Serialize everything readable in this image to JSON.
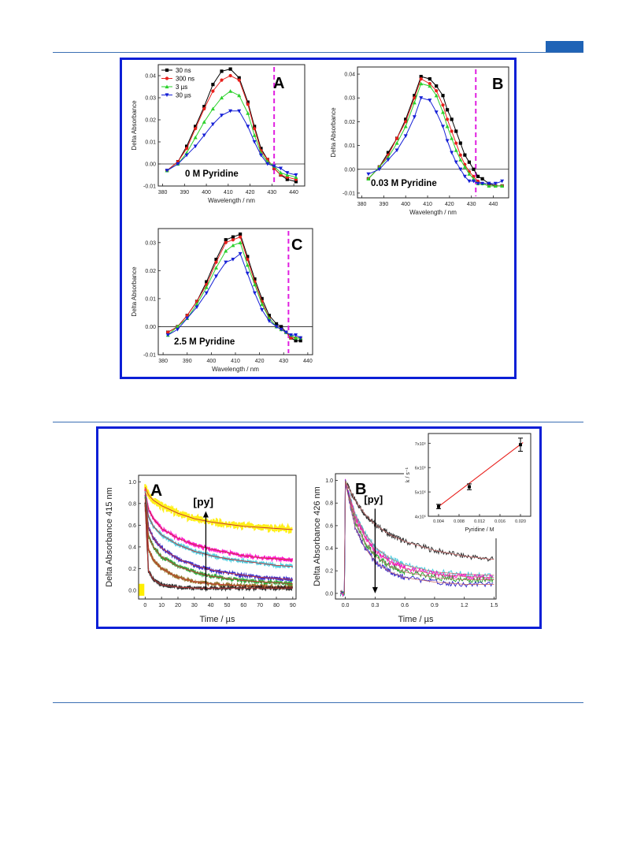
{
  "page": {
    "accent": "#1f63b6",
    "frame_color": "#0b1fd6"
  },
  "figure1": {
    "panels": [
      {
        "letter": "A",
        "annotation": "0 M Pyridine"
      },
      {
        "letter": "B",
        "annotation": "0.03 M Pyridine"
      },
      {
        "letter": "C",
        "annotation": "2.5 M Pyridine"
      }
    ],
    "legend": [
      "30 ns",
      "300 ns",
      "3 µs",
      "30 µs"
    ]
  },
  "figure2": {
    "panel_a": {
      "letter": "A",
      "annotation": "[py]"
    },
    "panel_b": {
      "letter": "B",
      "annotation": "[py]"
    }
  },
  "chart_data": [
    {
      "type": "line",
      "panel": "A",
      "annotation": "0 M Pyridine",
      "xlabel": "Wavelength / nm",
      "ylabel": "Delta Absorbance",
      "xlim": [
        378,
        445
      ],
      "ylim": [
        -0.01,
        0.045
      ],
      "xticks": [
        380,
        390,
        400,
        410,
        420,
        430,
        440
      ],
      "yticks": [
        -0.01,
        0.0,
        0.01,
        0.02,
        0.03,
        0.04
      ],
      "ytick_labels": [
        "-0.01",
        "0.00",
        "0.01",
        "0.02",
        "0.03",
        "0.04"
      ],
      "dashed_line_x": 431,
      "legend_position": "top-left",
      "x": [
        382,
        387,
        391,
        395,
        399,
        403,
        407,
        411,
        415,
        419,
        422,
        425,
        428,
        431,
        434,
        437,
        441
      ],
      "series": [
        {
          "name": "30 ns",
          "color": "#000000",
          "marker": "square",
          "values": [
            -0.003,
            0.001,
            0.008,
            0.017,
            0.026,
            0.036,
            0.042,
            0.043,
            0.039,
            0.028,
            0.017,
            0.007,
            0.002,
            -0.002,
            -0.005,
            -0.007,
            -0.008
          ]
        },
        {
          "name": "300 ns",
          "color": "#e8201c",
          "marker": "circle",
          "values": [
            -0.003,
            0.001,
            0.007,
            0.016,
            0.025,
            0.033,
            0.038,
            0.04,
            0.038,
            0.027,
            0.016,
            0.006,
            0.002,
            -0.002,
            -0.005,
            -0.006,
            -0.007
          ]
        },
        {
          "name": "3 µs",
          "color": "#2bd12b",
          "marker": "triangle-up",
          "values": [
            -0.003,
            0.0,
            0.005,
            0.012,
            0.019,
            0.025,
            0.03,
            0.033,
            0.031,
            0.023,
            0.013,
            0.005,
            0.001,
            -0.001,
            -0.004,
            -0.005,
            -0.006
          ]
        },
        {
          "name": "30 µs",
          "color": "#1620d6",
          "marker": "triangle-down",
          "values": [
            -0.003,
            0.0,
            0.004,
            0.008,
            0.013,
            0.018,
            0.022,
            0.024,
            0.024,
            0.017,
            0.01,
            0.004,
            0.0,
            -0.001,
            -0.002,
            -0.004,
            -0.005
          ]
        }
      ]
    },
    {
      "type": "line",
      "panel": "B",
      "annotation": "0.03 M Pyridine",
      "xlabel": "Wavelength / nm",
      "ylabel": "Delta Absorbance",
      "xlim": [
        378,
        447
      ],
      "ylim": [
        -0.012,
        0.043
      ],
      "xticks": [
        380,
        390,
        400,
        410,
        420,
        430,
        440
      ],
      "yticks": [
        -0.01,
        0.0,
        0.01,
        0.02,
        0.03,
        0.04
      ],
      "ytick_labels": [
        "-0.01",
        "0.00",
        "0.01",
        "0.02",
        "0.03",
        "0.04"
      ],
      "dashed_line_x": 432,
      "x": [
        383,
        388,
        392,
        396,
        400,
        404,
        407,
        411,
        414,
        417,
        419,
        421,
        423,
        425,
        427,
        429,
        431,
        433,
        435,
        438,
        441,
        444
      ],
      "series": [
        {
          "name": "30 ns",
          "color": "#000000",
          "marker": "square",
          "values": [
            -0.004,
            0.001,
            0.007,
            0.013,
            0.021,
            0.031,
            0.039,
            0.038,
            0.035,
            0.031,
            0.025,
            0.021,
            0.016,
            0.011,
            0.006,
            0.003,
            0.0,
            -0.003,
            -0.004,
            -0.006,
            -0.007,
            -0.007
          ]
        },
        {
          "name": "300 ns",
          "color": "#e8201c",
          "marker": "circle",
          "values": [
            -0.004,
            0.001,
            0.006,
            0.013,
            0.02,
            0.03,
            0.038,
            0.036,
            0.033,
            0.027,
            0.021,
            0.016,
            0.011,
            0.006,
            0.002,
            -0.001,
            -0.003,
            -0.005,
            -0.006,
            -0.007,
            -0.007,
            -0.007
          ]
        },
        {
          "name": "3 µs",
          "color": "#2bd12b",
          "marker": "triangle-up",
          "values": [
            -0.004,
            0.001,
            0.005,
            0.011,
            0.018,
            0.028,
            0.036,
            0.035,
            0.031,
            0.024,
            0.018,
            0.013,
            0.008,
            0.004,
            0.001,
            -0.002,
            -0.004,
            -0.006,
            -0.006,
            -0.007,
            -0.007,
            -0.007
          ]
        },
        {
          "name": "30 µs",
          "color": "#1620d6",
          "marker": "triangle-down",
          "values": [
            -0.002,
            0.0,
            0.004,
            0.008,
            0.014,
            0.022,
            0.03,
            0.029,
            0.024,
            0.018,
            0.012,
            0.007,
            0.003,
            0.0,
            -0.003,
            -0.005,
            -0.005,
            -0.006,
            -0.006,
            -0.006,
            -0.006,
            -0.005
          ]
        }
      ]
    },
    {
      "type": "line",
      "panel": "C",
      "annotation": "2.5 M Pyridine",
      "xlabel": "Wavelength / nm",
      "ylabel": "Delta Absorbance",
      "xlim": [
        378,
        442
      ],
      "ylim": [
        -0.01,
        0.035
      ],
      "xticks": [
        380,
        390,
        400,
        410,
        420,
        430,
        440
      ],
      "yticks": [
        -0.01,
        0.0,
        0.01,
        0.02,
        0.03
      ],
      "ytick_labels": [
        "-0.01",
        "0.00",
        "0.01",
        "0.02",
        "0.03"
      ],
      "dashed_line_x": 432,
      "x": [
        382,
        386,
        390,
        394,
        398,
        402,
        406,
        409,
        412,
        415,
        418,
        421,
        424,
        427,
        429,
        431,
        433,
        435,
        437
      ],
      "series": [
        {
          "name": "30 ns",
          "color": "#000000",
          "marker": "square",
          "values": [
            -0.002,
            0.0,
            0.004,
            0.009,
            0.016,
            0.024,
            0.031,
            0.032,
            0.033,
            0.025,
            0.017,
            0.01,
            0.004,
            0.001,
            0.0,
            -0.002,
            -0.004,
            -0.005,
            -0.005
          ]
        },
        {
          "name": "300 ns",
          "color": "#e8201c",
          "marker": "circle",
          "values": [
            -0.002,
            0.0,
            0.004,
            0.009,
            0.015,
            0.023,
            0.03,
            0.031,
            0.032,
            0.024,
            0.016,
            0.009,
            0.003,
            0.0,
            -0.001,
            -0.002,
            -0.004,
            -0.004,
            -0.004
          ]
        },
        {
          "name": "3 µs",
          "color": "#2bd12b",
          "marker": "triangle-up",
          "values": [
            -0.003,
            0.0,
            0.003,
            0.008,
            0.014,
            0.021,
            0.027,
            0.029,
            0.03,
            0.022,
            0.015,
            0.008,
            0.003,
            0.0,
            -0.001,
            -0.002,
            -0.003,
            -0.004,
            -0.004
          ]
        },
        {
          "name": "30 µs",
          "color": "#1620d6",
          "marker": "triangle-down",
          "values": [
            -0.003,
            -0.001,
            0.003,
            0.007,
            0.012,
            0.018,
            0.023,
            0.024,
            0.026,
            0.019,
            0.012,
            0.006,
            0.002,
            0.0,
            -0.001,
            -0.002,
            -0.003,
            -0.003,
            -0.004
          ]
        }
      ]
    },
    {
      "type": "line",
      "panel": "A",
      "annotation": "[py]",
      "xlabel": "Time / µs",
      "ylabel": "Delta Absorbance 415 nm",
      "xlim": [
        -4,
        92
      ],
      "ylim": [
        -0.08,
        1.06
      ],
      "xticks": [
        0,
        10,
        20,
        30,
        40,
        50,
        60,
        70,
        80,
        90
      ],
      "yticks": [
        0.0,
        0.2,
        0.4,
        0.6,
        0.8,
        1.0
      ],
      "ytick_labels": [
        "0.0",
        "0.2",
        "0.4",
        "0.6",
        "0.8",
        "1.0"
      ],
      "arrow": {
        "x": 37,
        "from": 0.0,
        "to": 0.73
      },
      "x": [
        0,
        2,
        5,
        10,
        20,
        30,
        40,
        50,
        60,
        70,
        80,
        90
      ],
      "series": [
        {
          "color": "#ffee00",
          "values": [
            0.95,
            0.88,
            0.83,
            0.78,
            0.71,
            0.66,
            0.63,
            0.61,
            0.59,
            0.58,
            0.57,
            0.56
          ]
        },
        {
          "color": "#ff00c8",
          "values": [
            0.92,
            0.75,
            0.66,
            0.57,
            0.48,
            0.42,
            0.38,
            0.35,
            0.32,
            0.3,
            0.29,
            0.28
          ]
        },
        {
          "color": "#38c8dc",
          "values": [
            0.9,
            0.68,
            0.59,
            0.51,
            0.42,
            0.36,
            0.32,
            0.29,
            0.27,
            0.25,
            0.23,
            0.22
          ]
        },
        {
          "color": "#2a1ec8",
          "values": [
            0.88,
            0.58,
            0.48,
            0.39,
            0.29,
            0.23,
            0.19,
            0.16,
            0.14,
            0.12,
            0.11,
            0.1
          ]
        },
        {
          "color": "#1ea028",
          "values": [
            0.85,
            0.5,
            0.4,
            0.31,
            0.22,
            0.17,
            0.13,
            0.11,
            0.09,
            0.08,
            0.07,
            0.06
          ]
        },
        {
          "color": "#8c6414",
          "values": [
            0.82,
            0.38,
            0.28,
            0.2,
            0.12,
            0.08,
            0.06,
            0.05,
            0.04,
            0.04,
            0.03,
            0.03
          ]
        },
        {
          "color": "#1e1e1e",
          "values": [
            0.8,
            0.18,
            0.1,
            0.05,
            0.03,
            0.02,
            0.02,
            0.02,
            0.02,
            0.02,
            0.02,
            0.02
          ]
        }
      ]
    },
    {
      "type": "line",
      "panel": "B",
      "annotation": "[py]",
      "xlabel": "Time / µs",
      "ylabel": "Delta Absorbance 426 nm",
      "xlim": [
        -0.1,
        1.52
      ],
      "ylim": [
        -0.05,
        1.06
      ],
      "xticks": [
        0.0,
        0.3,
        0.6,
        0.9,
        1.2,
        1.5
      ],
      "xtick_labels": [
        "0.0",
        "0.3",
        "0.6",
        "0.9",
        "1.2",
        "1.5"
      ],
      "yticks": [
        0.0,
        0.2,
        0.4,
        0.6,
        0.8,
        1.0
      ],
      "ytick_labels": [
        "0.0",
        "0.2",
        "0.4",
        "0.6",
        "0.8",
        "1.0"
      ],
      "arrow": {
        "x": 0.3,
        "from": 0.75,
        "to": 0.0
      },
      "x": [
        -0.05,
        -0.01,
        0.0,
        0.02,
        0.1,
        0.2,
        0.3,
        0.45,
        0.6,
        0.9,
        1.2,
        1.5
      ],
      "series": [
        {
          "color": "#1e1e1e",
          "values": [
            0.0,
            0.0,
            1.0,
            0.96,
            0.82,
            0.7,
            0.61,
            0.52,
            0.46,
            0.38,
            0.33,
            0.3
          ]
        },
        {
          "color": "#38c8dc",
          "values": [
            0.0,
            0.0,
            1.0,
            0.93,
            0.7,
            0.53,
            0.41,
            0.31,
            0.25,
            0.19,
            0.17,
            0.16
          ]
        },
        {
          "color": "#ff00c8",
          "values": [
            0.0,
            0.0,
            1.0,
            0.92,
            0.67,
            0.5,
            0.38,
            0.28,
            0.22,
            0.17,
            0.15,
            0.14
          ]
        },
        {
          "color": "#1ea028",
          "values": [
            0.0,
            0.0,
            1.0,
            0.91,
            0.63,
            0.45,
            0.33,
            0.24,
            0.19,
            0.14,
            0.12,
            0.12
          ]
        },
        {
          "color": "#2a1ec8",
          "values": [
            0.0,
            0.0,
            1.0,
            0.9,
            0.58,
            0.4,
            0.28,
            0.19,
            0.14,
            0.1,
            0.08,
            0.08
          ]
        }
      ]
    },
    {
      "type": "scatter",
      "panel": "inset",
      "xlabel": "Pyridine / M",
      "ylabel": "k / s⁻¹",
      "xlim": [
        0.002,
        0.022
      ],
      "ylim": [
        400000.0,
        740000.0
      ],
      "xticks": [
        0.004,
        0.008,
        0.012,
        0.016,
        0.02
      ],
      "xtick_labels": [
        "0.004",
        "0.008",
        "0.012",
        "0.016",
        "0.020"
      ],
      "yticks": [
        400000.0,
        500000.0,
        600000.0,
        700000.0
      ],
      "ytick_labels": [
        "4x10⁵",
        "5x10⁵",
        "6x10⁵",
        "7x10⁵"
      ],
      "points": [
        {
          "x": 0.004,
          "y": 440000,
          "err": 9000
        },
        {
          "x": 0.01,
          "y": 521000,
          "err": 12000
        },
        {
          "x": 0.02,
          "y": 694000,
          "err": 27000
        }
      ],
      "fit": {
        "x": [
          0.0037,
          0.0205
        ],
        "y": [
          435000,
          703000
        ],
        "color": "#e8201c"
      }
    }
  ]
}
